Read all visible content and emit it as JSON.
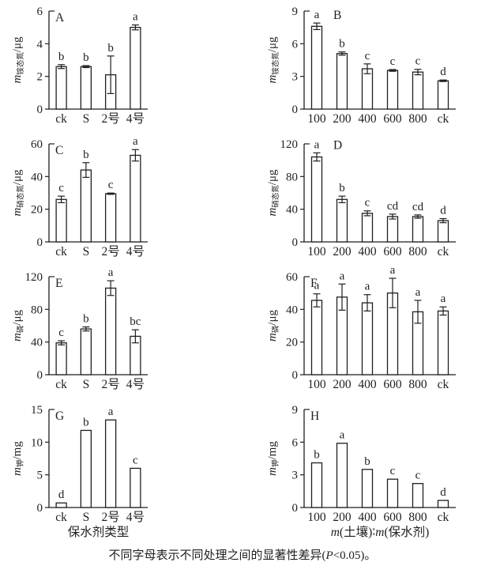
{
  "figure": {
    "background": "#ffffff",
    "ink": "#1f1f1f",
    "bar_fill": "#ffffff",
    "caption_segments": [
      {
        "t": "不同字母表示不同处理之间的显著性差异("
      },
      {
        "t": "P",
        "i": true
      },
      {
        "t": "<0.05)。"
      }
    ]
  },
  "chart_data": [
    {
      "type": "bar",
      "panel": "A",
      "column": "left",
      "ylabel": {
        "prefix": "m",
        "sub": "铵态氮",
        "unit": "/μg"
      },
      "ylim": [
        0,
        6
      ],
      "yticks": [
        0,
        2,
        4,
        6
      ],
      "categories": [
        "ck",
        "S",
        "2号",
        "4号"
      ],
      "values": [
        2.6,
        2.6,
        2.1,
        5.0
      ],
      "errors": [
        0.12,
        0.06,
        1.15,
        0.15
      ],
      "letters": [
        "b",
        "b",
        "b",
        "a"
      ],
      "panel_label_pos": "axis",
      "xlabel_segments": []
    },
    {
      "type": "bar",
      "panel": "B",
      "column": "right",
      "ylabel": {
        "prefix": "m",
        "sub": "铵态氮",
        "unit": "/μg"
      },
      "ylim": [
        0,
        9
      ],
      "yticks": [
        0,
        3,
        6,
        9
      ],
      "categories": [
        "100",
        "200",
        "400",
        "600",
        "800",
        "ck"
      ],
      "values": [
        7.6,
        5.1,
        3.7,
        3.55,
        3.4,
        2.6
      ],
      "errors": [
        0.3,
        0.15,
        0.45,
        0.08,
        0.25,
        0.07
      ],
      "letters": [
        "a",
        "b",
        "c",
        "c",
        "c",
        "d"
      ],
      "panel_label_pos": "after-first-letter",
      "xlabel_segments": []
    },
    {
      "type": "bar",
      "panel": "C",
      "column": "left",
      "ylabel": {
        "prefix": "m",
        "sub": "硝态氮",
        "unit": "/μg"
      },
      "ylim": [
        0,
        60
      ],
      "yticks": [
        0,
        20,
        40,
        60
      ],
      "categories": [
        "ck",
        "S",
        "2号",
        "4号"
      ],
      "values": [
        26,
        44,
        29.5,
        53
      ],
      "errors": [
        2,
        4.5,
        0.4,
        3.5
      ],
      "letters": [
        "c",
        "b",
        "c",
        "a"
      ],
      "panel_label_pos": "axis",
      "xlabel_segments": []
    },
    {
      "type": "bar",
      "panel": "D",
      "column": "right",
      "ylabel": {
        "prefix": "m",
        "sub": "硝态氮",
        "unit": "/μg"
      },
      "ylim": [
        0,
        120
      ],
      "yticks": [
        0,
        40,
        80,
        120
      ],
      "categories": [
        "100",
        "200",
        "400",
        "600",
        "800",
        "ck"
      ],
      "values": [
        104,
        52,
        35,
        31,
        31,
        26
      ],
      "errors": [
        5,
        4,
        3,
        3,
        2,
        2.5
      ],
      "letters": [
        "a",
        "b",
        "c",
        "cd",
        "cd",
        "d"
      ],
      "panel_label_pos": "after-first-letter",
      "xlabel_segments": []
    },
    {
      "type": "bar",
      "panel": "E",
      "column": "left",
      "ylabel": {
        "prefix": "m",
        "sub": "磷",
        "unit": "/μg"
      },
      "ylim": [
        0,
        120
      ],
      "yticks": [
        0,
        40,
        80,
        120
      ],
      "categories": [
        "ck",
        "S",
        "2号",
        "4号"
      ],
      "values": [
        39,
        56,
        106,
        47
      ],
      "errors": [
        2.5,
        2.5,
        9,
        8
      ],
      "letters": [
        "c",
        "b",
        "a",
        "bc"
      ],
      "panel_label_pos": "axis",
      "xlabel_segments": []
    },
    {
      "type": "bar",
      "panel": "F",
      "column": "right",
      "ylabel": {
        "prefix": "m",
        "sub": "磷",
        "unit": "/μg"
      },
      "ylim": [
        0,
        60
      ],
      "yticks": [
        0,
        20,
        40,
        60
      ],
      "categories": [
        "100",
        "200",
        "400",
        "600",
        "800",
        "ck"
      ],
      "values": [
        45.5,
        47.5,
        44,
        50,
        38.5,
        39
      ],
      "errors": [
        4,
        8,
        5,
        9,
        7,
        2.5
      ],
      "letters": [
        "a",
        "a",
        "a",
        "a",
        "a",
        "a"
      ],
      "panel_label_pos": "axis",
      "xlabel_segments": []
    },
    {
      "type": "bar",
      "panel": "G",
      "column": "left",
      "ylabel": {
        "prefix": "m",
        "sub": "钾",
        "unit": "/mg"
      },
      "ylim": [
        0,
        15
      ],
      "yticks": [
        0,
        5,
        10,
        15
      ],
      "categories": [
        "ck",
        "S",
        "2号",
        "4号"
      ],
      "values": [
        0.7,
        11.8,
        13.4,
        6.0
      ],
      "errors": [
        0,
        0,
        0,
        0
      ],
      "letters": [
        "d",
        "b",
        "a",
        "c"
      ],
      "panel_label_pos": "axis",
      "xlabel_segments": [
        {
          "t": "保水剂类型"
        }
      ]
    },
    {
      "type": "bar",
      "panel": "H",
      "column": "right",
      "ylabel": {
        "prefix": "m",
        "sub": "钾",
        "unit": "/mg"
      },
      "ylim": [
        0,
        9
      ],
      "yticks": [
        0,
        3,
        6,
        9
      ],
      "categories": [
        "100",
        "200",
        "400",
        "600",
        "800",
        "ck"
      ],
      "values": [
        4.1,
        5.9,
        3.5,
        2.6,
        2.2,
        0.65
      ],
      "errors": [
        0,
        0,
        0,
        0,
        0,
        0
      ],
      "letters": [
        "b",
        "a",
        "b",
        "c",
        "c",
        "d"
      ],
      "panel_label_pos": "axis",
      "xlabel_segments": [
        {
          "t": "m",
          "i": true
        },
        {
          "t": "(土壤)∶"
        },
        {
          "t": "m",
          "i": true
        },
        {
          "t": "(保水剂)"
        }
      ]
    }
  ]
}
